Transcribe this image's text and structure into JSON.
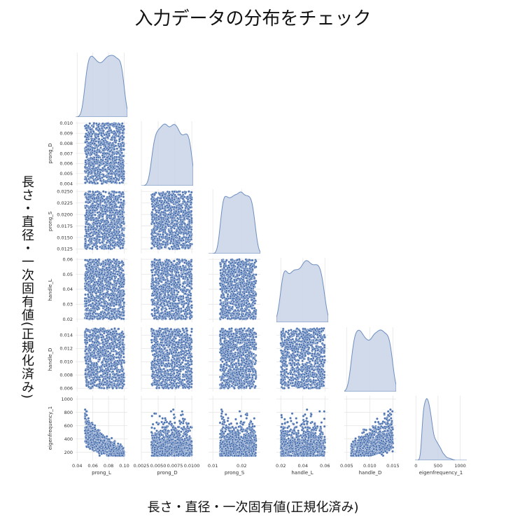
{
  "title": "入力データの分布をチェック",
  "x_super_label": "長さ・直径・一次固有値(正規化済み)",
  "y_super_label": "長さ・直径・一次固有値(正規化済み)",
  "colors": {
    "points": "#4c72b0",
    "kde_fill": "#c9d4e6",
    "kde_line": "#6d8ebf",
    "grid": "#e6e6e6"
  },
  "chart_data": {
    "type": "scatter",
    "variant": "pairplot-lower-triangle",
    "variables": [
      "prong_L",
      "prong_D",
      "prong_S",
      "handle_L",
      "handle_D",
      "eigenfrequency_1"
    ],
    "diagonal": "kde",
    "grid": true,
    "ranges": {
      "prong_L": [
        0.04,
        0.105
      ],
      "prong_D": [
        0.0038,
        0.0102
      ],
      "prong_S": [
        0.0115,
        0.0255
      ],
      "handle_L": [
        0.018,
        0.061
      ],
      "handle_D": [
        0.0055,
        0.0152
      ],
      "eigenfrequency_1": [
        80,
        1050
      ]
    },
    "ticks": {
      "prong_L": [
        0.04,
        0.06,
        0.08,
        0.1
      ],
      "prong_D": [
        0.004,
        0.005,
        0.006,
        0.007,
        0.008,
        0.009,
        0.01
      ],
      "prong_D_xlabels": [
        "0.0025",
        "0.0050",
        "0.0075",
        "0.0100"
      ],
      "prong_S": [
        0.0125,
        0.015,
        0.0175,
        0.02,
        0.0225,
        0.025
      ],
      "prong_S_xlabels": [
        "0.01",
        "0.02"
      ],
      "handle_L": [
        0.02,
        0.03,
        0.04,
        0.05,
        0.06
      ],
      "handle_L_xlabels": [
        "0.02",
        "0.04",
        "0.06"
      ],
      "handle_D": [
        0.006,
        0.008,
        0.01,
        0.012,
        0.014
      ],
      "handle_D_xlabels": [
        "0.005",
        "0.010",
        "0.015"
      ],
      "eigenfrequency_1": [
        200,
        400,
        600,
        800,
        1000
      ],
      "eigenfrequency_1_xlabels": [
        "0",
        "500",
        "1000"
      ]
    },
    "tick_labels": {
      "prong_L": [
        "0.04",
        "0.06",
        "0.08",
        "0.10"
      ],
      "prong_D": [
        "0.004",
        "0.005",
        "0.006",
        "0.007",
        "0.008",
        "0.009",
        "0.010"
      ],
      "prong_D_x": [
        "0.0025",
        "0.0050",
        "0.0075",
        "0.0100"
      ],
      "prong_S": [
        "0.0125",
        "0.0150",
        "0.0175",
        "0.0200",
        "0.0225",
        "0.0250"
      ],
      "prong_S_x": [
        "0.01",
        "0.02"
      ],
      "handle_L": [
        "0.02",
        "0.03",
        "0.04",
        "0.05",
        "0.06"
      ],
      "handle_L_x": [
        "0.02",
        "0.04",
        "0.06"
      ],
      "handle_D": [
        "0.006",
        "0.008",
        "0.010",
        "0.012",
        "0.014"
      ],
      "handle_D_x": [
        "0.005",
        "0.010",
        "0.015"
      ],
      "eigenfrequency_1": [
        "200",
        "400",
        "600",
        "800",
        "1000"
      ],
      "eigenfrequency_1_x": [
        "0",
        "500",
        "1000"
      ]
    },
    "sample_count": 1000,
    "distributions": {
      "prong_L": "uniform 0.05–0.10",
      "prong_D": "uniform 0.004–0.010",
      "prong_S": "uniform 0.0125–0.025",
      "handle_L": "uniform 0.02–0.06",
      "handle_D": "uniform 0.006–0.015",
      "eigenfrequency_1": "right-skewed, mode ≈ 280, range ≈ 150–1030"
    },
    "relations": {
      "eigenfrequency_1_vs_prong_L": "negative, ≈ 700 at 0.05 to ≈ 260 at 0.10",
      "eigenfrequency_1_vs_handle_D": "positive, ≈ 250 at 0.006 to ≈ 550 at 0.015"
    }
  }
}
